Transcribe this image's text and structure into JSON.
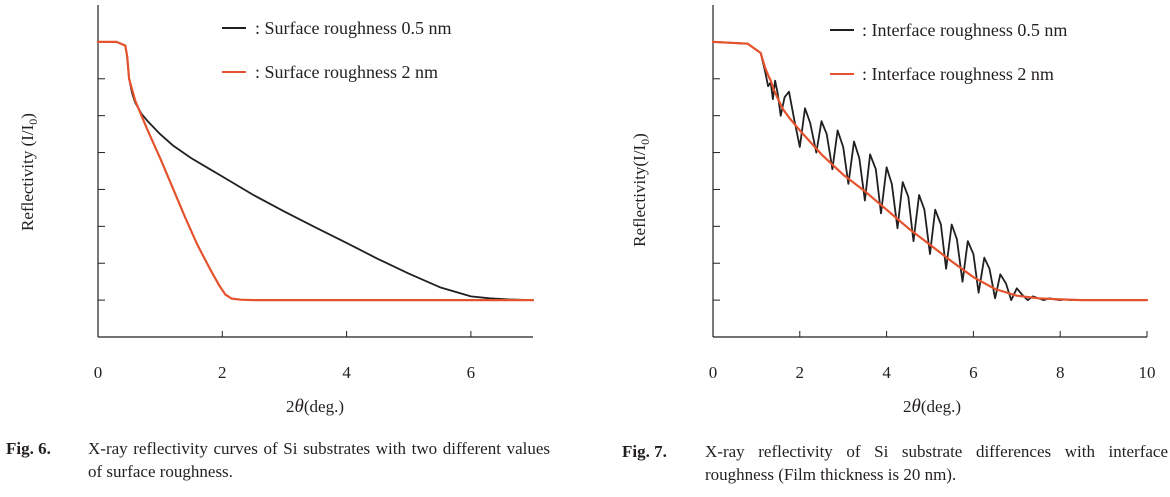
{
  "chart_data": [
    {
      "type": "line",
      "title": "",
      "xlabel": "2θ(deg.)",
      "ylabel": "Reflectivity (I/I0)",
      "ylabel_main": "Reflectivity (I/I",
      "ylabel_sub": "0",
      "ylabel_close": ")",
      "xlim": [
        0,
        7
      ],
      "ylim": [
        -1,
        8
      ],
      "xticks": [
        0,
        2,
        4,
        6
      ],
      "y_tick_labels_shown": false,
      "grid": false,
      "legend_position": "top-right",
      "series": [
        {
          "name": ": Surface roughness 0.5 nm",
          "color": "#231f20",
          "x": [
            0,
            0.3,
            0.44,
            0.47,
            0.5,
            0.55,
            0.6,
            0.7,
            0.8,
            1.0,
            1.2,
            1.5,
            1.8,
            2.0,
            2.5,
            3.0,
            3.5,
            4.0,
            4.5,
            5.0,
            5.5,
            6.0,
            6.3,
            6.6,
            7.0
          ],
          "y": [
            7.0,
            7.0,
            6.9,
            6.6,
            6.0,
            5.6,
            5.35,
            5.05,
            4.85,
            4.5,
            4.2,
            3.85,
            3.55,
            3.35,
            2.85,
            2.4,
            1.97,
            1.55,
            1.12,
            0.72,
            0.35,
            0.1,
            0.05,
            0.02,
            0.0
          ]
        },
        {
          "name": ": Surface roughness 2 nm",
          "color": "#e4532d",
          "x": [
            0,
            0.3,
            0.44,
            0.47,
            0.5,
            0.6,
            0.8,
            1.0,
            1.2,
            1.4,
            1.6,
            1.8,
            1.95,
            2.05,
            2.15,
            2.3,
            2.5,
            3.0,
            4.0,
            5.0,
            6.0,
            7.0
          ],
          "y": [
            7.0,
            7.0,
            6.9,
            6.6,
            6.0,
            5.4,
            4.6,
            3.85,
            3.05,
            2.25,
            1.5,
            0.85,
            0.4,
            0.15,
            0.04,
            0.01,
            0.0,
            0.0,
            0.0,
            0.0,
            0.0,
            0.0
          ]
        }
      ]
    },
    {
      "type": "line",
      "title": "",
      "xlabel": "2θ(deg.)",
      "ylabel": "Reflectivity(I/I0)",
      "ylabel_main": "Reflectivity(I/I",
      "ylabel_sub": "0",
      "ylabel_close": ")",
      "xlim": [
        0,
        10
      ],
      "ylim": [
        -1,
        8
      ],
      "xticks": [
        0,
        2,
        4,
        6,
        8,
        10
      ],
      "y_tick_labels_shown": false,
      "grid": false,
      "legend_position": "top-right",
      "series": [
        {
          "name": ": Interface roughness 0.5 nm",
          "color": "#231f20",
          "x": [
            0,
            0.8,
            1.1,
            1.2,
            1.27,
            1.33,
            1.38,
            1.43,
            1.49,
            1.56,
            1.65,
            1.75,
            1.87,
            2.0,
            2.12,
            2.24,
            2.38,
            2.5,
            2.62,
            2.75,
            2.87,
            3.0,
            3.12,
            3.25,
            3.37,
            3.5,
            3.62,
            3.75,
            3.87,
            4.0,
            4.12,
            4.25,
            4.37,
            4.5,
            4.62,
            4.75,
            4.87,
            5.0,
            5.12,
            5.25,
            5.37,
            5.5,
            5.62,
            5.75,
            5.87,
            6.0,
            6.12,
            6.25,
            6.37,
            6.5,
            6.62,
            6.75,
            6.87,
            7.0,
            7.12,
            7.25,
            7.37,
            7.5,
            7.62,
            7.75,
            7.87,
            8.0,
            8.12,
            8.25,
            8.37,
            8.5,
            8.62,
            8.75
          ],
          "y": [
            7.0,
            6.95,
            6.7,
            6.2,
            5.8,
            5.9,
            5.45,
            5.95,
            5.6,
            5.0,
            5.5,
            5.65,
            4.9,
            4.15,
            5.2,
            4.8,
            4.0,
            4.85,
            4.5,
            3.55,
            4.6,
            4.15,
            3.15,
            4.3,
            3.85,
            2.7,
            3.95,
            3.55,
            2.35,
            3.6,
            3.15,
            1.95,
            3.2,
            2.8,
            1.6,
            2.85,
            2.45,
            1.25,
            2.45,
            2.05,
            0.85,
            2.05,
            1.65,
            0.5,
            1.6,
            1.25,
            0.2,
            1.15,
            0.85,
            0.05,
            0.7,
            0.45,
            0.0,
            0.32,
            0.15,
            0.0,
            0.1,
            0.05,
            0.0,
            0.05,
            0.02,
            0.0,
            0.02,
            0.0,
            0.0,
            0.0,
            0.0,
            0.0
          ]
        },
        {
          "name": ": Interface roughness 2 nm",
          "color": "#e4532d",
          "x": [
            0,
            0.8,
            1.1,
            1.2,
            1.27,
            1.33,
            1.4,
            1.5,
            1.6,
            1.75,
            2.0,
            2.5,
            3.0,
            3.5,
            4.0,
            4.5,
            5.0,
            5.5,
            6.0,
            6.5,
            7.0,
            7.5,
            8.0,
            8.5,
            9.0,
            10.0
          ],
          "y": [
            7.0,
            6.95,
            6.7,
            6.3,
            6.1,
            5.95,
            5.7,
            5.45,
            5.2,
            4.95,
            4.6,
            3.95,
            3.4,
            2.95,
            2.45,
            1.95,
            1.5,
            1.05,
            0.62,
            0.3,
            0.12,
            0.05,
            0.02,
            0.0,
            0.0,
            0.0
          ]
        }
      ]
    }
  ],
  "captions": [
    {
      "label": "Fig. 6.",
      "text": "X-ray reflectivity curves of Si substrates with two different values of surface roughness."
    },
    {
      "label": "Fig. 7.",
      "text": "X-ray reflectivity of Si substrate differences with interface roughness (Film thickness is 20 nm)."
    }
  ]
}
